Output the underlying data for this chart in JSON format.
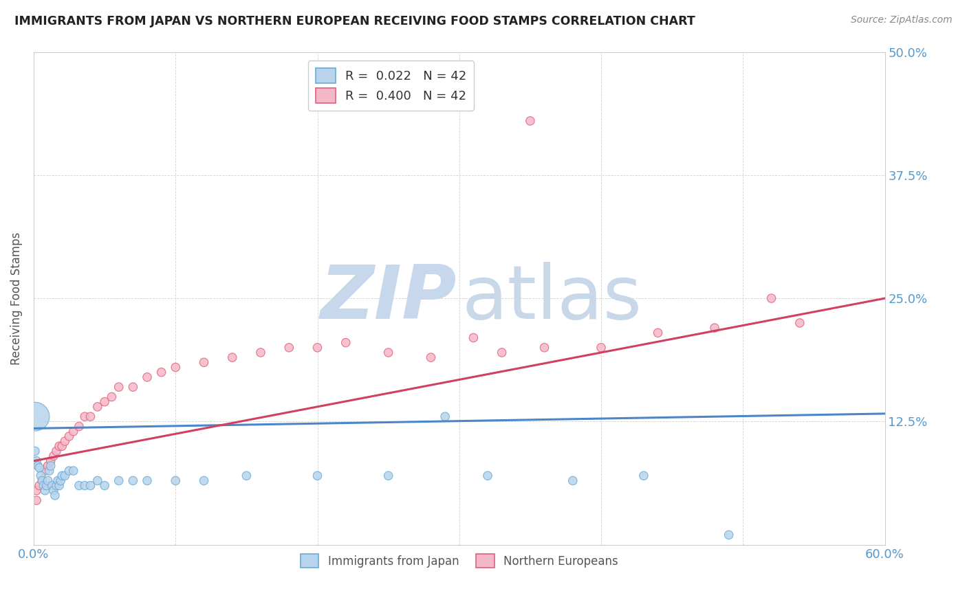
{
  "title": "IMMIGRANTS FROM JAPAN VS NORTHERN EUROPEAN RECEIVING FOOD STAMPS CORRELATION CHART",
  "source": "Source: ZipAtlas.com",
  "ylabel": "Receiving Food Stamps",
  "x_min": 0.0,
  "x_max": 0.6,
  "y_min": 0.0,
  "y_max": 0.5,
  "y_ticks": [
    0.0,
    0.125,
    0.25,
    0.375,
    0.5
  ],
  "y_tick_labels_right": [
    "",
    "12.5%",
    "25.0%",
    "37.5%",
    "50.0%"
  ],
  "x_ticks": [
    0.0,
    0.1,
    0.2,
    0.3,
    0.4,
    0.5,
    0.6
  ],
  "x_tick_labels": [
    "0.0%",
    "",
    "",
    "",
    "",
    "",
    "60.0%"
  ],
  "legend_r_japan": "0.022",
  "legend_n_japan": "42",
  "legend_r_northern": "0.400",
  "legend_n_northern": "42",
  "color_japan_fill": "#b8d4ec",
  "color_japan_edge": "#6aaad4",
  "color_northern_fill": "#f5b8c8",
  "color_northern_edge": "#e0607a",
  "color_japan_line": "#4a86c8",
  "color_northern_line": "#d04060",
  "watermark_zip_color": "#c8d8ec",
  "watermark_atlas_color": "#c8d8e8",
  "japan_scatter_x": [
    0.001,
    0.002,
    0.003,
    0.004,
    0.005,
    0.006,
    0.007,
    0.008,
    0.009,
    0.01,
    0.011,
    0.012,
    0.013,
    0.014,
    0.015,
    0.016,
    0.017,
    0.018,
    0.019,
    0.02,
    0.022,
    0.025,
    0.028,
    0.032,
    0.036,
    0.04,
    0.045,
    0.05,
    0.06,
    0.07,
    0.08,
    0.1,
    0.12,
    0.15,
    0.2,
    0.25,
    0.29,
    0.32,
    0.38,
    0.43,
    0.49,
    0.001
  ],
  "japan_scatter_y": [
    0.095,
    0.085,
    0.08,
    0.078,
    0.07,
    0.065,
    0.06,
    0.055,
    0.06,
    0.065,
    0.075,
    0.08,
    0.06,
    0.055,
    0.05,
    0.06,
    0.065,
    0.06,
    0.065,
    0.07,
    0.07,
    0.075,
    0.075,
    0.06,
    0.06,
    0.06,
    0.065,
    0.06,
    0.065,
    0.065,
    0.065,
    0.065,
    0.065,
    0.07,
    0.07,
    0.07,
    0.13,
    0.07,
    0.065,
    0.07,
    0.01,
    0.13
  ],
  "japan_scatter_size": [
    80,
    80,
    80,
    80,
    80,
    80,
    80,
    80,
    80,
    80,
    80,
    80,
    80,
    80,
    80,
    80,
    80,
    80,
    80,
    80,
    80,
    80,
    80,
    80,
    80,
    80,
    80,
    80,
    80,
    80,
    80,
    80,
    80,
    80,
    80,
    80,
    80,
    80,
    80,
    80,
    80,
    900
  ],
  "northern_scatter_x": [
    0.002,
    0.004,
    0.006,
    0.008,
    0.01,
    0.012,
    0.014,
    0.016,
    0.018,
    0.02,
    0.022,
    0.025,
    0.028,
    0.032,
    0.036,
    0.04,
    0.045,
    0.05,
    0.055,
    0.06,
    0.07,
    0.08,
    0.09,
    0.1,
    0.12,
    0.14,
    0.16,
    0.18,
    0.2,
    0.22,
    0.25,
    0.28,
    0.31,
    0.33,
    0.36,
    0.4,
    0.44,
    0.48,
    0.52,
    0.54,
    0.002,
    0.35
  ],
  "northern_scatter_y": [
    0.055,
    0.06,
    0.065,
    0.075,
    0.08,
    0.085,
    0.09,
    0.095,
    0.1,
    0.1,
    0.105,
    0.11,
    0.115,
    0.12,
    0.13,
    0.13,
    0.14,
    0.145,
    0.15,
    0.16,
    0.16,
    0.17,
    0.175,
    0.18,
    0.185,
    0.19,
    0.195,
    0.2,
    0.2,
    0.205,
    0.195,
    0.19,
    0.21,
    0.195,
    0.2,
    0.2,
    0.215,
    0.22,
    0.25,
    0.225,
    0.045,
    0.43
  ],
  "northern_scatter_size": [
    80,
    80,
    80,
    80,
    80,
    80,
    80,
    80,
    80,
    80,
    80,
    80,
    80,
    80,
    80,
    80,
    80,
    80,
    80,
    80,
    80,
    80,
    80,
    80,
    80,
    80,
    80,
    80,
    80,
    80,
    80,
    80,
    80,
    80,
    80,
    80,
    80,
    80,
    80,
    80,
    80,
    80
  ],
  "japan_line_x0": 0.0,
  "japan_line_x1": 0.6,
  "japan_line_y0": 0.118,
  "japan_line_y1": 0.133,
  "northern_line_x0": 0.0,
  "northern_line_x1": 0.6,
  "northern_line_y0": 0.085,
  "northern_line_y1": 0.25
}
